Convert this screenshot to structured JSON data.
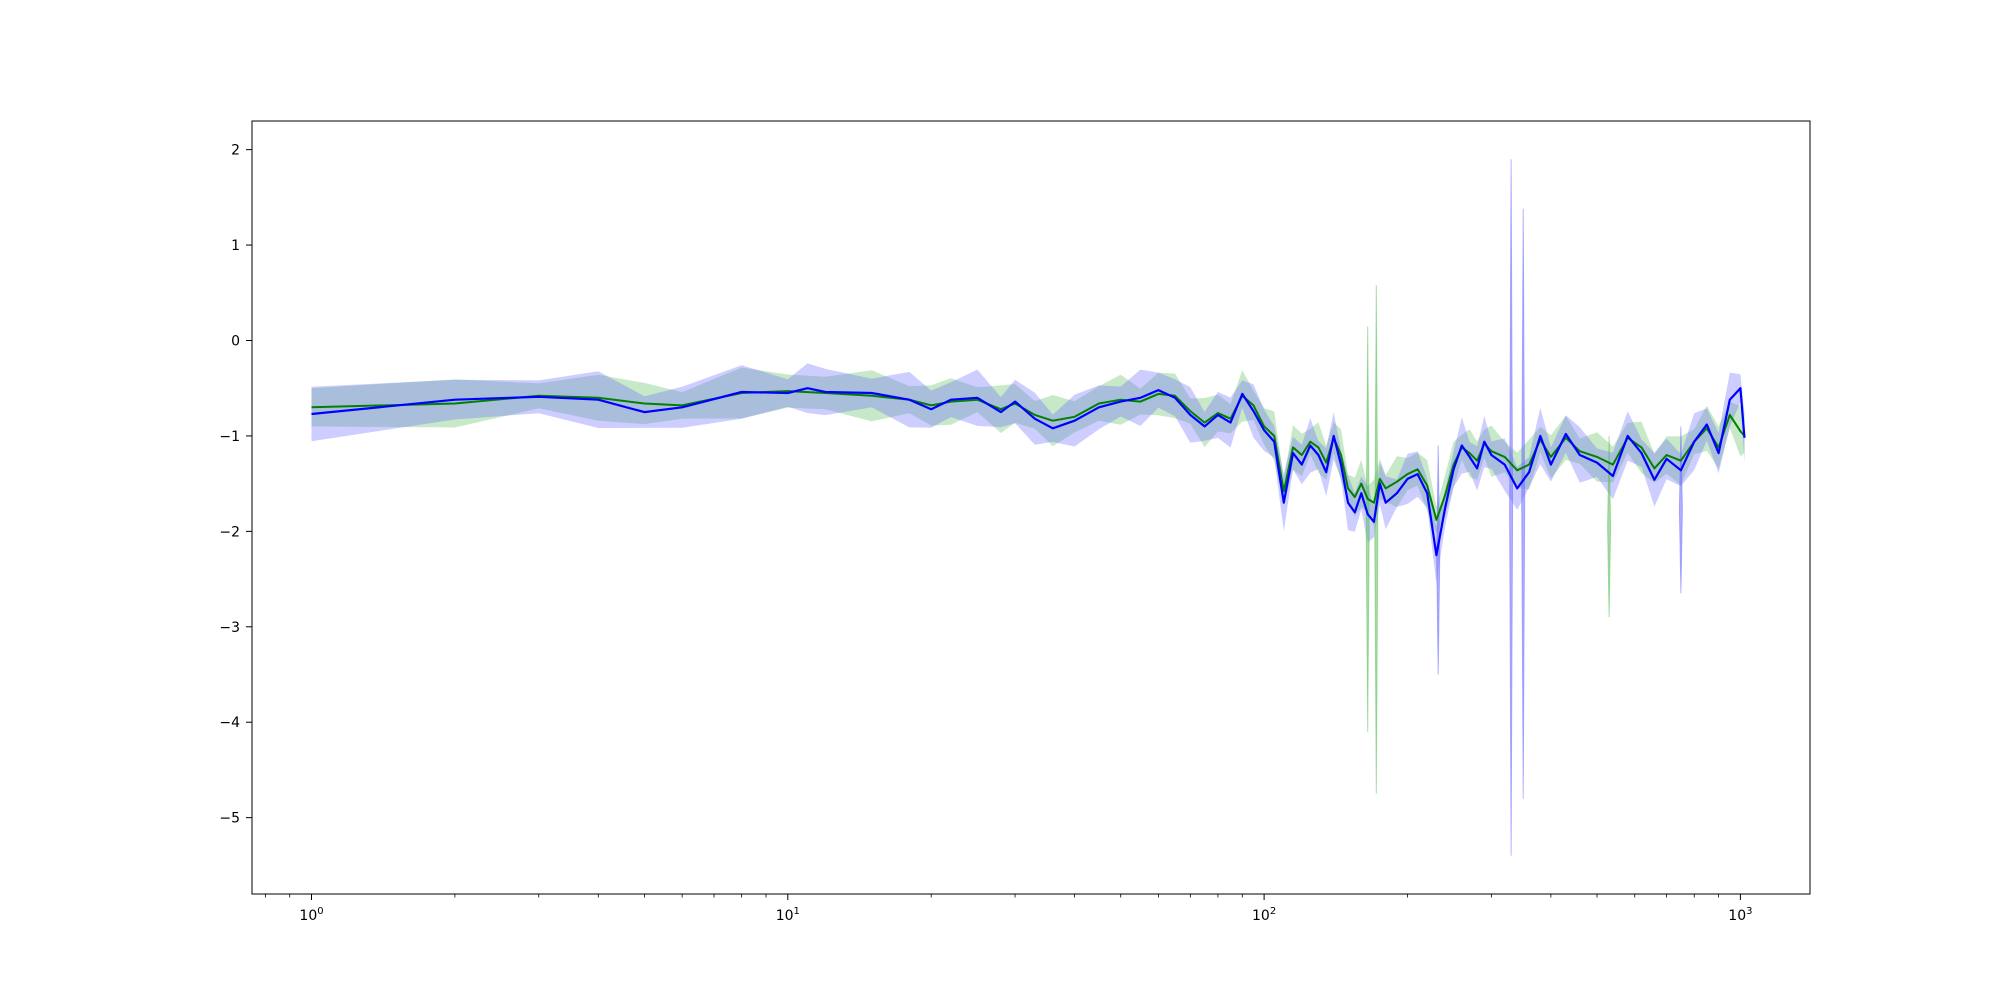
{
  "colors": {
    "series_a": "#008000",
    "series_b": "#0000ff",
    "band_a": "#60c060",
    "band_b": "#6f6fff",
    "axes": "#000000"
  },
  "chart_data": {
    "type": "line",
    "title": "",
    "xlabel": "",
    "ylabel": "",
    "xscale": "log",
    "xlim": [
      0.75,
      1400
    ],
    "ylim": [
      -5.8,
      2.3
    ],
    "grid": false,
    "legend": "none",
    "x_ticks": [
      1,
      10,
      100,
      1000
    ],
    "x_tick_labels": [
      {
        "base": "10",
        "exp": "0"
      },
      {
        "base": "10",
        "exp": "1"
      },
      {
        "base": "10",
        "exp": "2"
      },
      {
        "base": "10",
        "exp": "3"
      }
    ],
    "y_ticks": [
      2,
      1,
      0,
      -1,
      -2,
      -3,
      -4,
      -5
    ],
    "y_tick_labels": [
      "2",
      "1",
      "0",
      "−1",
      "−2",
      "−3",
      "−4",
      "−5"
    ],
    "series": [
      {
        "color": "green",
        "points": [
          [
            1,
            -0.7
          ],
          [
            2,
            -0.66
          ],
          [
            3,
            -0.58
          ],
          [
            4,
            -0.6
          ],
          [
            5,
            -0.66
          ],
          [
            6,
            -0.68
          ],
          [
            8,
            -0.55
          ],
          [
            10,
            -0.53
          ],
          [
            12,
            -0.55
          ],
          [
            15,
            -0.58
          ],
          [
            18,
            -0.62
          ],
          [
            20,
            -0.68
          ],
          [
            22,
            -0.64
          ],
          [
            25,
            -0.62
          ],
          [
            28,
            -0.72
          ],
          [
            30,
            -0.66
          ],
          [
            33,
            -0.78
          ],
          [
            36,
            -0.84
          ],
          [
            40,
            -0.8
          ],
          [
            45,
            -0.66
          ],
          [
            50,
            -0.62
          ],
          [
            55,
            -0.64
          ],
          [
            60,
            -0.56
          ],
          [
            65,
            -0.58
          ],
          [
            70,
            -0.74
          ],
          [
            75,
            -0.86
          ],
          [
            80,
            -0.76
          ],
          [
            85,
            -0.82
          ],
          [
            90,
            -0.58
          ],
          [
            95,
            -0.68
          ],
          [
            100,
            -0.9
          ],
          [
            105,
            -1.0
          ],
          [
            110,
            -1.58
          ],
          [
            115,
            -1.12
          ],
          [
            120,
            -1.2
          ],
          [
            125,
            -1.06
          ],
          [
            130,
            -1.12
          ],
          [
            135,
            -1.28
          ],
          [
            140,
            -1.02
          ],
          [
            145,
            -1.2
          ],
          [
            150,
            -1.55
          ],
          [
            155,
            -1.64
          ],
          [
            160,
            -1.5
          ],
          [
            165,
            -1.66
          ],
          [
            170,
            -1.7
          ],
          [
            175,
            -1.45
          ],
          [
            180,
            -1.55
          ],
          [
            190,
            -1.48
          ],
          [
            200,
            -1.4
          ],
          [
            210,
            -1.35
          ],
          [
            220,
            -1.52
          ],
          [
            230,
            -1.88
          ],
          [
            240,
            -1.62
          ],
          [
            250,
            -1.3
          ],
          [
            260,
            -1.12
          ],
          [
            270,
            -1.18
          ],
          [
            280,
            -1.26
          ],
          [
            290,
            -1.08
          ],
          [
            300,
            -1.16
          ],
          [
            320,
            -1.22
          ],
          [
            340,
            -1.36
          ],
          [
            360,
            -1.3
          ],
          [
            380,
            -1.04
          ],
          [
            400,
            -1.22
          ],
          [
            430,
            -1.02
          ],
          [
            460,
            -1.16
          ],
          [
            500,
            -1.22
          ],
          [
            540,
            -1.3
          ],
          [
            580,
            -1.02
          ],
          [
            620,
            -1.12
          ],
          [
            660,
            -1.34
          ],
          [
            700,
            -1.2
          ],
          [
            750,
            -1.26
          ],
          [
            800,
            -1.06
          ],
          [
            850,
            -0.92
          ],
          [
            900,
            -1.12
          ],
          [
            950,
            -0.78
          ],
          [
            1000,
            -0.95
          ],
          [
            1020,
            -1.0
          ]
        ],
        "band_halfwidth": 0.2
      },
      {
        "color": "blue",
        "points": [
          [
            1,
            -0.77
          ],
          [
            2,
            -0.62
          ],
          [
            3,
            -0.59
          ],
          [
            4,
            -0.62
          ],
          [
            5,
            -0.75
          ],
          [
            6,
            -0.7
          ],
          [
            8,
            -0.54
          ],
          [
            10,
            -0.55
          ],
          [
            11,
            -0.5
          ],
          [
            12,
            -0.54
          ],
          [
            15,
            -0.55
          ],
          [
            18,
            -0.62
          ],
          [
            20,
            -0.72
          ],
          [
            22,
            -0.62
          ],
          [
            25,
            -0.6
          ],
          [
            28,
            -0.75
          ],
          [
            30,
            -0.64
          ],
          [
            33,
            -0.82
          ],
          [
            36,
            -0.92
          ],
          [
            40,
            -0.84
          ],
          [
            45,
            -0.7
          ],
          [
            50,
            -0.64
          ],
          [
            55,
            -0.6
          ],
          [
            60,
            -0.52
          ],
          [
            65,
            -0.6
          ],
          [
            70,
            -0.78
          ],
          [
            75,
            -0.9
          ],
          [
            80,
            -0.78
          ],
          [
            85,
            -0.86
          ],
          [
            90,
            -0.56
          ],
          [
            95,
            -0.74
          ],
          [
            100,
            -0.94
          ],
          [
            105,
            -1.06
          ],
          [
            110,
            -1.7
          ],
          [
            115,
            -1.18
          ],
          [
            120,
            -1.3
          ],
          [
            125,
            -1.1
          ],
          [
            130,
            -1.2
          ],
          [
            135,
            -1.38
          ],
          [
            140,
            -1.0
          ],
          [
            145,
            -1.3
          ],
          [
            150,
            -1.7
          ],
          [
            155,
            -1.8
          ],
          [
            160,
            -1.6
          ],
          [
            165,
            -1.82
          ],
          [
            170,
            -1.9
          ],
          [
            175,
            -1.5
          ],
          [
            180,
            -1.7
          ],
          [
            190,
            -1.6
          ],
          [
            200,
            -1.45
          ],
          [
            210,
            -1.4
          ],
          [
            220,
            -1.6
          ],
          [
            230,
            -2.25
          ],
          [
            240,
            -1.75
          ],
          [
            250,
            -1.35
          ],
          [
            260,
            -1.1
          ],
          [
            270,
            -1.22
          ],
          [
            280,
            -1.34
          ],
          [
            290,
            -1.06
          ],
          [
            300,
            -1.2
          ],
          [
            320,
            -1.3
          ],
          [
            340,
            -1.55
          ],
          [
            360,
            -1.38
          ],
          [
            380,
            -1.0
          ],
          [
            400,
            -1.3
          ],
          [
            430,
            -0.98
          ],
          [
            460,
            -1.2
          ],
          [
            500,
            -1.28
          ],
          [
            540,
            -1.42
          ],
          [
            580,
            -1.0
          ],
          [
            620,
            -1.18
          ],
          [
            660,
            -1.46
          ],
          [
            700,
            -1.24
          ],
          [
            750,
            -1.36
          ],
          [
            800,
            -1.06
          ],
          [
            850,
            -0.88
          ],
          [
            900,
            -1.18
          ],
          [
            950,
            -0.62
          ],
          [
            1000,
            -0.5
          ],
          [
            1020,
            -1.02
          ]
        ],
        "band_halfwidth": 0.22
      }
    ],
    "spikes": [
      {
        "x": 165,
        "top": 0.15,
        "bottom": -4.1,
        "color": "green"
      },
      {
        "x": 172,
        "top": 0.58,
        "bottom": -4.75,
        "color": "green"
      },
      {
        "x": 330,
        "top": 1.9,
        "bottom": -5.4,
        "color": "blue"
      },
      {
        "x": 350,
        "top": 1.38,
        "bottom": -4.8,
        "color": "blue"
      },
      {
        "x": 232,
        "top": -1.1,
        "bottom": -3.5,
        "color": "blue"
      },
      {
        "x": 530,
        "top": -1.0,
        "bottom": -2.9,
        "color": "green"
      },
      {
        "x": 750,
        "top": -0.9,
        "bottom": -2.65,
        "color": "blue"
      }
    ]
  }
}
